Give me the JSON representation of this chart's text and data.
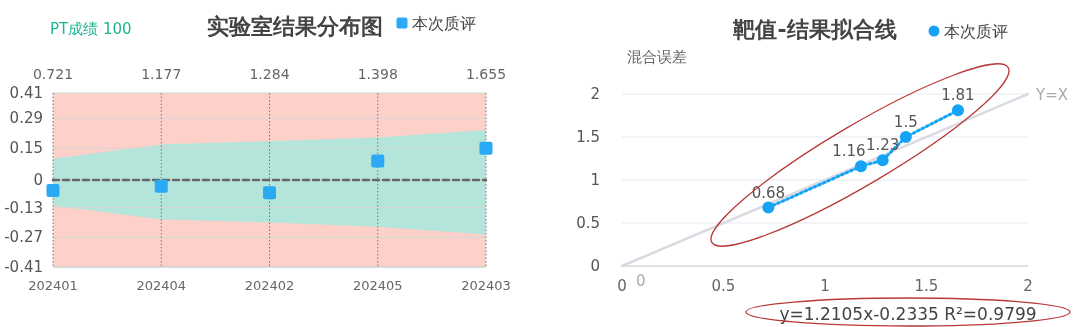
{
  "chart_data": [
    {
      "type": "scatter",
      "title": "实验室结果分布图",
      "subtitle": "PT成绩 100",
      "categories": [
        "202401",
        "202404",
        "202402",
        "202405",
        "202403"
      ],
      "annotations": [
        "0.721",
        "1.177",
        "1.284",
        "1.398",
        "1.655"
      ],
      "ylim": [
        -0.41,
        0.41
      ],
      "yticks": [
        -0.41,
        -0.27,
        -0.13,
        0,
        0.15,
        0.29,
        0.41
      ],
      "bands": [
        {
          "axis": "y",
          "from": -0.41,
          "to": 0.41,
          "color": "#fdd0c9"
        }
      ],
      "grid": true,
      "legend": "top",
      "series": [
        {
          "type": "line",
          "color": "#666666",
          "line_style": "dashed",
          "marker": "none",
          "values": [
            0,
            0,
            0,
            0,
            0
          ],
          "lower": [
            -0.12,
            -0.186,
            -0.2,
            -0.22,
            -0.257
          ],
          "upper": [
            0.1,
            0.167,
            0.183,
            0.2,
            0.236
          ]
        },
        {
          "name": "本次质评",
          "type": "scatter",
          "color": "#2aaaf5",
          "marker": "square",
          "values": [
            -0.05,
            -0.03,
            -0.06,
            0.09,
            0.15
          ]
        }
      ]
    },
    {
      "type": "scatter",
      "title": "靶值-结果拟合线",
      "ylabel": "混合误差",
      "xlim": [
        0,
        2
      ],
      "xticks": [
        0,
        0.5,
        1,
        1.5,
        2
      ],
      "ylim": [
        0,
        2
      ],
      "yticks": [
        0,
        0.5,
        1,
        1.5,
        2
      ],
      "grid": "y",
      "legend": "top",
      "series": [
        {
          "name": "Y=X",
          "type": "line",
          "color": "#d9dae2",
          "marker": "none",
          "x": [
            0,
            2
          ],
          "values": [
            0,
            2
          ],
          "value_labels": [
            "0",
            null
          ]
        },
        {
          "name": "本次质评",
          "type": "line",
          "line_style": "dotted",
          "marker": "circle",
          "color": "#14a3f5",
          "x": [
            0.721,
            1.177,
            1.284,
            1.398,
            1.655
          ],
          "values": [
            0.68,
            1.16,
            1.23,
            1.5,
            1.81
          ],
          "value_labels": [
            "0.68",
            "1.16",
            "1.23",
            "1.5",
            "1.81"
          ]
        }
      ],
      "annotations": [
        "y=1.2105x-0.2335  R²=0.9799"
      ]
    }
  ]
}
